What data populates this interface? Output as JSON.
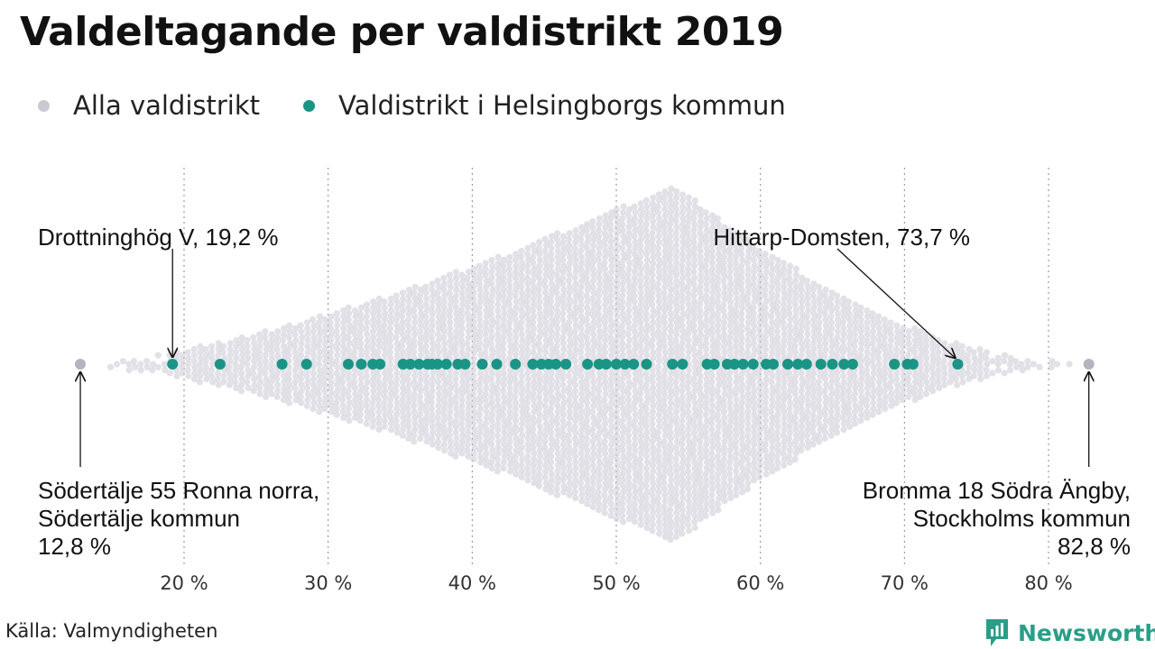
{
  "title": "Valdeltagande per valdistrikt 2019",
  "legend": {
    "all_label": "Alla valdistrikt",
    "helsingborg_label": "Valdistrikt i Helsingborgs kommun"
  },
  "colors": {
    "all": "#c9c9d3",
    "helsingborg": "#1a9585",
    "annotation": "#111111"
  },
  "source": "Källa: Valmyndigheten",
  "brand": {
    "name": "Newsworthy",
    "icon": "bar-chart-icon"
  },
  "chart_data": {
    "type": "scatter",
    "subtype": "beeswarm",
    "title": "Valdeltagande per valdistrikt 2019",
    "xlabel": "",
    "ylabel": "",
    "xlim": [
      12,
      85
    ],
    "x_ticks": [
      20,
      30,
      40,
      50,
      60,
      70,
      80
    ],
    "x_tick_labels": [
      "20 %",
      "30 %",
      "40 %",
      "50 %",
      "60 %",
      "70 %",
      "80 %"
    ],
    "grid": "vertical dotted",
    "legend_position": "top-left",
    "series": [
      {
        "name": "Alla valdistrikt",
        "summary": {
          "min": 12.8,
          "max": 82.8,
          "mode": 54
        }
      },
      {
        "name": "Valdistrikt i Helsingborgs kommun",
        "values": [
          19.2,
          22.5,
          26.8,
          28.5,
          31.4,
          32.3,
          33.1,
          33.6,
          35.2,
          35.7,
          36.3,
          36.9,
          37.2,
          37.6,
          38.2,
          39.0,
          39.5,
          40.7,
          41.7,
          43.0,
          44.2,
          44.8,
          45.3,
          45.8,
          46.5,
          48.0,
          48.8,
          49.3,
          50.0,
          50.6,
          51.2,
          52.1,
          53.9,
          54.6,
          56.3,
          56.8,
          57.7,
          58.2,
          58.8,
          59.5,
          60.4,
          60.9,
          61.9,
          62.6,
          63.2,
          64.2,
          65.0,
          65.8,
          66.4,
          69.3,
          70.2,
          70.6,
          73.7
        ]
      }
    ],
    "annotations": [
      {
        "lines": [
          "Drottninghög V, 19,2 %"
        ],
        "value": 19.2
      },
      {
        "lines": [
          "Hittarp-Domsten, 73,7 %"
        ],
        "value": 73.7
      },
      {
        "lines": [
          "Södertälje 55 Ronna norra,",
          "Södertälje kommun",
          "12,8 %"
        ],
        "value": 12.8
      },
      {
        "lines": [
          "Bromma 18 Södra Ängby,",
          "Stockholms kommun",
          "82,8 %"
        ],
        "value": 82.8
      }
    ]
  }
}
